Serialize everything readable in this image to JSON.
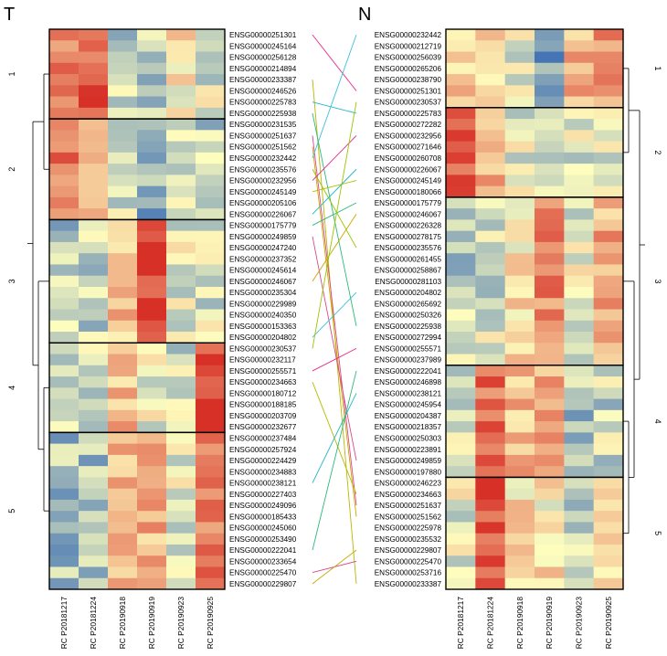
{
  "chart_data": {
    "type": "heatmap",
    "title": "",
    "left": {
      "panel_title": "T",
      "columns": [
        "RC P20181217",
        "RC P20181224",
        "RC P20190918",
        "RC P20190919",
        "RC P20190923",
        "RC P20190925"
      ],
      "clusters": [
        {
          "label": "1",
          "genes": [
            "ENSG00000251301",
            "ENSG00000245164",
            "ENSG00000256128",
            "ENSG00000214894",
            "ENSG00000233387",
            "ENSG00000246526",
            "ENSG00000225783",
            "ENSG00000225938"
          ]
        },
        {
          "label": "2",
          "genes": [
            "ENSG00000231535",
            "ENSG00000251637",
            "ENSG00000251562",
            "ENSG00000232442",
            "ENSG00000235576",
            "ENSG00000232956",
            "ENSG00000245149",
            "ENSG00000205106",
            "ENSG00000226067"
          ]
        },
        {
          "label": "3",
          "genes": [
            "ENSG00000175779",
            "ENSG00000249859",
            "ENSG00000247240",
            "ENSG00000237352",
            "ENSG00000245614",
            "ENSG00000246067",
            "ENSG00000235304",
            "ENSG00000229989",
            "ENSG00000240350",
            "ENSG00000153363",
            "ENSG00000204802"
          ]
        },
        {
          "label": "4",
          "genes": [
            "ENSG00000230537",
            "ENSG00000232117",
            "ENSG00000255571",
            "ENSG00000234663",
            "ENSG00000180712",
            "ENSG00000188185",
            "ENSG00000203709",
            "ENSG00000232677"
          ]
        },
        {
          "label": "5",
          "genes": [
            "ENSG00000237484",
            "ENSG00000257924",
            "ENSG00000224429",
            "ENSG00000234883",
            "ENSG00000238121",
            "ENSG00000227403",
            "ENSG00000249096",
            "ENSG00000185433",
            "ENSG00000245060",
            "ENSG00000253490",
            "ENSG00000222041",
            "ENSG00000233654",
            "ENSG00000225470",
            "ENSG00000229807"
          ]
        }
      ],
      "cluster_profiles": [
        [
          1.6,
          2.4,
          -0.6,
          -0.9,
          0.3,
          -0.3
        ],
        [
          2.0,
          1.5,
          -0.3,
          -1.3,
          -0.5,
          -0.6
        ],
        [
          -0.7,
          -0.6,
          1.0,
          2.8,
          -0.2,
          -0.4
        ],
        [
          -0.6,
          -0.6,
          0.9,
          -0.1,
          -0.5,
          2.8
        ],
        [
          -0.9,
          -0.9,
          0.8,
          1.1,
          -0.3,
          1.8
        ]
      ]
    },
    "right": {
      "panel_title": "N",
      "columns": [
        "RC P20181217",
        "RC P20181224",
        "RC P20190918",
        "RC P20190919",
        "RC P20190923",
        "RC P20190925"
      ],
      "clusters": [
        {
          "label": "1",
          "genes": [
            "ENSG00000232442",
            "ENSG00000212719",
            "ENSG00000256039",
            "ENSG00000265206",
            "ENSG00000238790",
            "ENSG00000251301",
            "ENSG00000230537"
          ]
        },
        {
          "label": "2",
          "genes": [
            "ENSG00000225783",
            "ENSG00000272282",
            "ENSG00000232956",
            "ENSG00000271646",
            "ENSG00000260708",
            "ENSG00000226067",
            "ENSG00000245149",
            "ENSG00000180066"
          ]
        },
        {
          "label": "3",
          "genes": [
            "ENSG00000175779",
            "ENSG00000246067",
            "ENSG00000226328",
            "ENSG00000278175",
            "ENSG00000235576",
            "ENSG00000261455",
            "ENSG00000258867",
            "ENSG00000281103",
            "ENSG00000204802",
            "ENSG00000265692",
            "ENSG00000250326",
            "ENSG00000225938",
            "ENSG00000272994",
            "ENSG00000255571",
            "ENSG00000237989"
          ]
        },
        {
          "label": "4",
          "genes": [
            "ENSG00000222041",
            "ENSG00000246898",
            "ENSG00000238121",
            "ENSG00000245954",
            "ENSG00000204387",
            "ENSG00000218357",
            "ENSG00000250303",
            "ENSG00000223891",
            "ENSG00000249859",
            "ENSG00000197880"
          ]
        },
        {
          "label": "5",
          "genes": [
            "ENSG00000246223",
            "ENSG00000234663",
            "ENSG00000251637",
            "ENSG00000251562",
            "ENSG00000225978",
            "ENSG00000235532",
            "ENSG00000229807",
            "ENSG00000225470",
            "ENSG00000253716",
            "ENSG00000233387"
          ]
        }
      ],
      "cluster_profiles": [
        [
          0.9,
          0.4,
          -0.3,
          -1.6,
          1.2,
          1.4
        ],
        [
          2.2,
          1.0,
          -0.2,
          -0.6,
          -0.3,
          -0.2
        ],
        [
          -0.6,
          -0.4,
          0.4,
          1.8,
          -0.2,
          1.2
        ],
        [
          -0.4,
          2.0,
          1.0,
          1.3,
          -0.8,
          -0.5
        ],
        [
          -0.2,
          2.6,
          0.4,
          0.3,
          -0.8,
          0.7
        ]
      ]
    },
    "color_scale": {
      "low": "#4575b4",
      "mid": "#fffebe",
      "high": "#d73027",
      "range": [
        -2,
        3
      ]
    },
    "connector_colors": [
      "#e7298a",
      "#b8b800",
      "#1fb6c9",
      "#2db87a",
      "#d64a8a",
      "#c9a600",
      "#3cc0d8",
      "#9ac400"
    ]
  }
}
